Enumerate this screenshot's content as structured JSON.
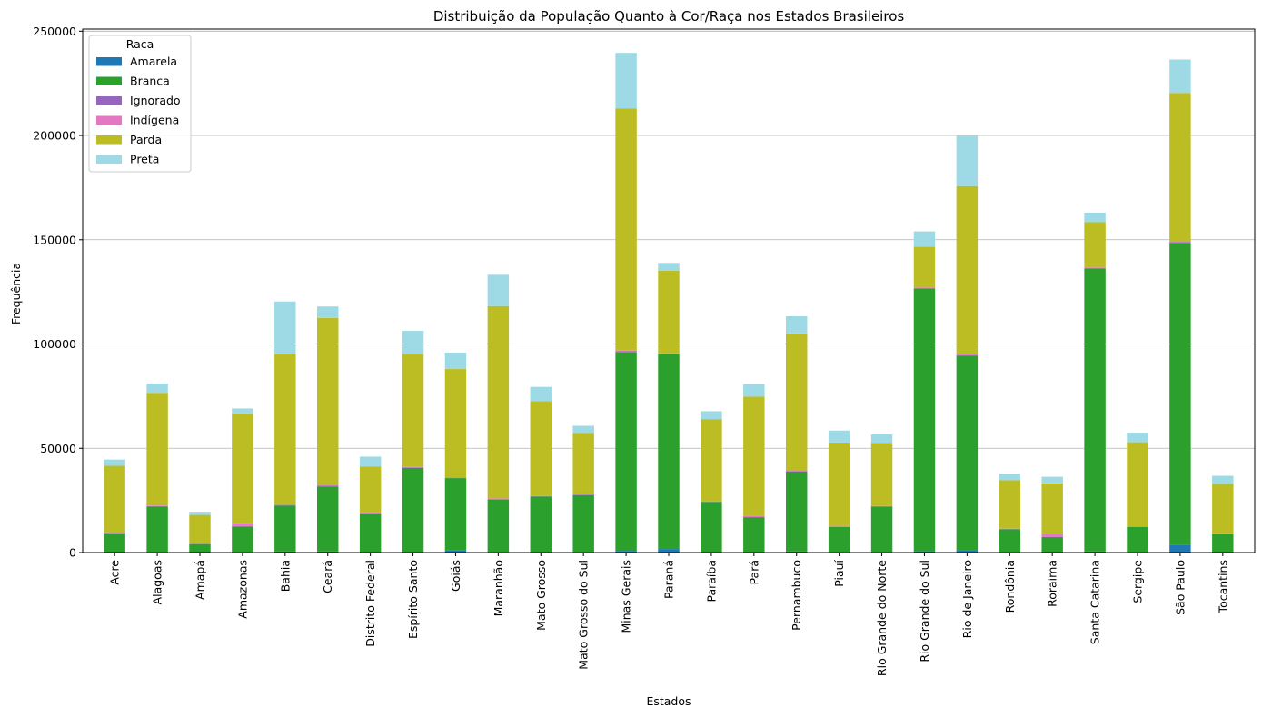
{
  "chart_data": {
    "type": "bar",
    "stacked": true,
    "title": "Distribuição da População Quanto à Cor/Raça nos Estados Brasileiros",
    "xlabel": "Estados",
    "ylabel": "Frequência",
    "ylim": [
      0,
      251000
    ],
    "yticks": [
      0,
      50000,
      100000,
      150000,
      200000,
      250000
    ],
    "grid": "y",
    "legend": {
      "title": "Raca",
      "position": "top-left"
    },
    "categories": [
      "Acre",
      "Alagoas",
      "Amapá",
      "Amazonas",
      "Bahia",
      "Ceará",
      "Distrito Federal",
      "Espírito Santo",
      "Goiás",
      "Maranhão",
      "Mato Grosso",
      "Mato Grosso do Sul",
      "Minas Gerais",
      "Paraná",
      "Paraíba",
      "Pará",
      "Pernambuco",
      "Piauí",
      "Rio Grande do Norte",
      "Rio Grande do Sul",
      "Rio de Janeiro",
      "Rondônia",
      "Roraima",
      "Santa Catarina",
      "Sergipe",
      "São Paulo",
      "Tocantins"
    ],
    "series": [
      {
        "name": "Amarela",
        "color": "#1f77b4",
        "values": [
          200,
          300,
          100,
          300,
          500,
          500,
          400,
          400,
          1000,
          300,
          400,
          300,
          800,
          1700,
          400,
          400,
          500,
          300,
          300,
          600,
          900,
          300,
          200,
          500,
          300,
          3800,
          200
        ]
      },
      {
        "name": "Branca",
        "color": "#2ca02c",
        "values": [
          9100,
          21800,
          4000,
          12200,
          22000,
          31200,
          18300,
          40200,
          34700,
          25000,
          26500,
          27300,
          95200,
          93300,
          23900,
          16400,
          38300,
          12000,
          21700,
          125900,
          93500,
          10900,
          7200,
          135600,
          12000,
          144700,
          8700
        ]
      },
      {
        "name": "Ignorado",
        "color": "#9467bd",
        "values": [
          100,
          200,
          50,
          200,
          300,
          300,
          200,
          300,
          200,
          200,
          150,
          200,
          500,
          300,
          150,
          200,
          300,
          200,
          150,
          300,
          300,
          200,
          150,
          300,
          150,
          400,
          100
        ]
      },
      {
        "name": "Indígena",
        "color": "#e377c2",
        "values": [
          200,
          300,
          100,
          1300,
          400,
          600,
          300,
          200,
          200,
          500,
          300,
          400,
          300,
          200,
          150,
          600,
          500,
          300,
          200,
          300,
          300,
          300,
          1300,
          300,
          150,
          400,
          200
        ]
      },
      {
        "name": "Parda",
        "color": "#bcbd22",
        "values": [
          32000,
          54000,
          13800,
          52800,
          71800,
          79900,
          22000,
          54200,
          51900,
          92200,
          45300,
          29100,
          116200,
          39600,
          39400,
          57200,
          65500,
          40000,
          30300,
          19500,
          80700,
          23000,
          24300,
          21700,
          40300,
          71100,
          23700
        ]
      },
      {
        "name": "Preta",
        "color": "#9edae5",
        "values": [
          3000,
          4500,
          1500,
          2300,
          25400,
          5500,
          4800,
          11000,
          7900,
          15000,
          6800,
          3500,
          26600,
          3800,
          3800,
          6000,
          8200,
          5700,
          4000,
          7400,
          24200,
          3100,
          3200,
          4600,
          4600,
          16000,
          3900
        ]
      }
    ]
  }
}
